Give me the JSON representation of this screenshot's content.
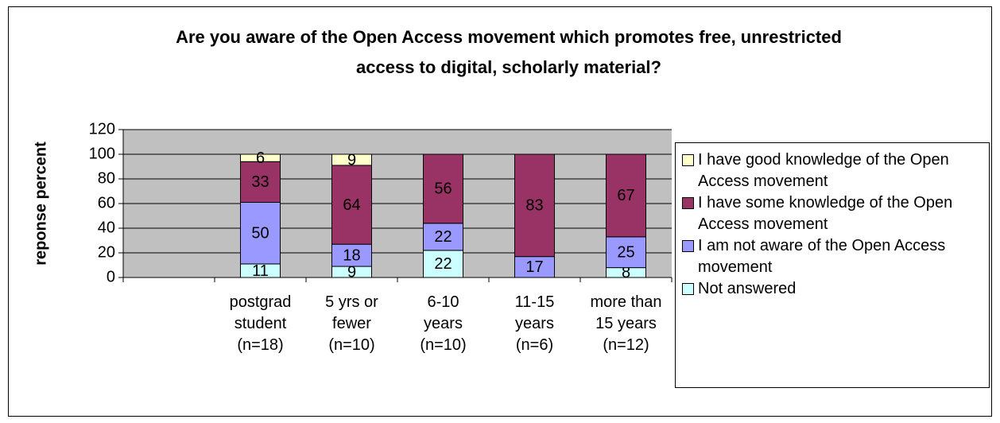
{
  "chart_data": {
    "type": "bar",
    "stacked": true,
    "title": "Are you aware of the Open Access movement which promotes free, unrestricted access to digital, scholarly material?",
    "ylabel": "reponse percent",
    "categories": [
      null,
      "postgrad student (n=18)",
      "5 yrs or fewer (n=10)",
      "6-10 years (n=10)",
      "11-15 years (n=6)",
      "more than 15 years (n=12)"
    ],
    "series": [
      {
        "name": "Not answered",
        "color": "#CCFFFF",
        "values": [
          null,
          11,
          9,
          22,
          null,
          8
        ]
      },
      {
        "name": "I am not aware of the Open Access movement",
        "color": "#9999FF",
        "values": [
          null,
          50,
          18,
          22,
          17,
          25
        ]
      },
      {
        "name": "I have some knowledge of the Open Access movement",
        "color": "#993366",
        "values": [
          null,
          33,
          64,
          56,
          83,
          67
        ]
      },
      {
        "name": "I have good knowledge of the Open Access movement",
        "color": "#FFFFCC",
        "values": [
          null,
          6,
          9,
          null,
          null,
          null
        ]
      }
    ],
    "ylim": [
      0,
      120
    ],
    "yticks": [
      0,
      20,
      40,
      60,
      80,
      100,
      120
    ],
    "grid": true,
    "legend": "right"
  }
}
